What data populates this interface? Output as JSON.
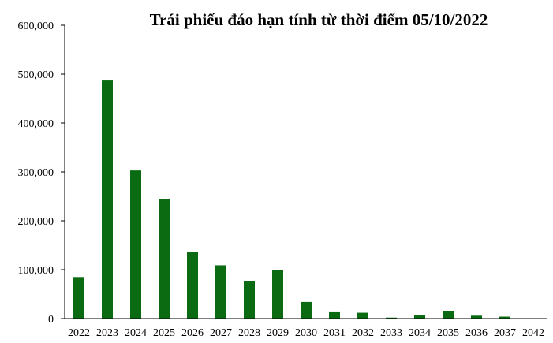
{
  "chart_data": {
    "type": "bar",
    "title": "Trái phiếu đáo hạn tính từ thời điểm 05/10/2022",
    "categories": [
      "2022",
      "2023",
      "2024",
      "2025",
      "2026",
      "2027",
      "2028",
      "2029",
      "2030",
      "2031",
      "2032",
      "2033",
      "2034",
      "2035",
      "2036",
      "2037",
      "2042"
    ],
    "values": [
      85000,
      487000,
      303000,
      244000,
      136000,
      109000,
      77000,
      100000,
      34000,
      13000,
      12000,
      2000,
      7000,
      16000,
      6000,
      4000,
      0
    ],
    "ylim": [
      0,
      600000
    ],
    "yticks": [
      0,
      100000,
      200000,
      300000,
      400000,
      500000,
      600000
    ],
    "ytick_labels": [
      "0",
      "100,000",
      "200,000",
      "300,000",
      "400,000",
      "500,000",
      "600,000"
    ],
    "bar_color": "#0b6b12",
    "grid": false,
    "legend": "none"
  }
}
